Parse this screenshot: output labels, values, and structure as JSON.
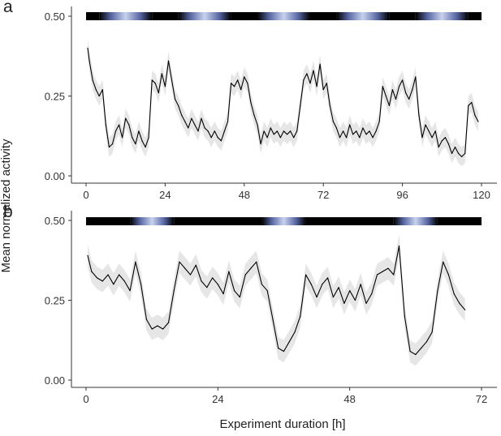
{
  "figure": {
    "ylabel": "Mean normalized activity",
    "xlabel": "Experiment duration [h]"
  },
  "colors": {
    "line": "#000000",
    "ribbon": "#e6e6e6",
    "dark": "#000000",
    "light": "#c8d2ee",
    "mid": "#5564a0"
  },
  "chart_data": [
    {
      "panel_label": "a",
      "type": "line",
      "xlabel": "Experiment duration [h]",
      "ylabel": "Mean normalized activity",
      "xlim": [
        0,
        120
      ],
      "ylim": [
        0,
        0.5
      ],
      "x_ticks": [
        0,
        24,
        48,
        72,
        96,
        120
      ],
      "y_ticks": [
        "0.00",
        "0.25",
        "0.50"
      ],
      "grid": false,
      "light_bar": [
        {
          "start": 0,
          "end": 4,
          "state": "dark"
        },
        {
          "start": 4,
          "end": 20,
          "state": "light"
        },
        {
          "start": 20,
          "end": 28,
          "state": "dark"
        },
        {
          "start": 28,
          "end": 44,
          "state": "light"
        },
        {
          "start": 44,
          "end": 52,
          "state": "dark"
        },
        {
          "start": 52,
          "end": 68,
          "state": "light"
        },
        {
          "start": 68,
          "end": 76,
          "state": "dark"
        },
        {
          "start": 76,
          "end": 92,
          "state": "light"
        },
        {
          "start": 92,
          "end": 100,
          "state": "dark"
        },
        {
          "start": 100,
          "end": 116,
          "state": "light"
        },
        {
          "start": 116,
          "end": 120,
          "state": "dark"
        }
      ],
      "series": [
        {
          "x": [
            0.5,
            1,
            2,
            3,
            4,
            5,
            6,
            7,
            8,
            9,
            10,
            11,
            12,
            13,
            14,
            15,
            16,
            17,
            18,
            19,
            20,
            21,
            22,
            23,
            24,
            25,
            26,
            27,
            28,
            29,
            30,
            31,
            32,
            33,
            34,
            35,
            36,
            37,
            38,
            39,
            40,
            41,
            42,
            43,
            44,
            45,
            46,
            47,
            48,
            49,
            50,
            51,
            52,
            53,
            54,
            55,
            56,
            57,
            58,
            59,
            60,
            61,
            62,
            63,
            64,
            65,
            66,
            67,
            68,
            69,
            70,
            71,
            72,
            73,
            74,
            75,
            76,
            77,
            78,
            79,
            80,
            81,
            82,
            83,
            84,
            85,
            86,
            87,
            88,
            89,
            90,
            91,
            92,
            93,
            94,
            95,
            96,
            97,
            98,
            99,
            100,
            101,
            102,
            103,
            104,
            105,
            106,
            107,
            108,
            109,
            110,
            111,
            112,
            113,
            114,
            115,
            116,
            117,
            118,
            119
          ],
          "y": [
            0.4,
            0.36,
            0.3,
            0.27,
            0.25,
            0.27,
            0.16,
            0.09,
            0.1,
            0.14,
            0.16,
            0.12,
            0.18,
            0.16,
            0.12,
            0.1,
            0.14,
            0.11,
            0.09,
            0.12,
            0.3,
            0.29,
            0.26,
            0.32,
            0.28,
            0.36,
            0.3,
            0.24,
            0.22,
            0.19,
            0.17,
            0.15,
            0.18,
            0.16,
            0.14,
            0.18,
            0.15,
            0.14,
            0.12,
            0.14,
            0.12,
            0.11,
            0.14,
            0.17,
            0.29,
            0.28,
            0.3,
            0.27,
            0.31,
            0.29,
            0.23,
            0.19,
            0.16,
            0.1,
            0.14,
            0.12,
            0.15,
            0.13,
            0.14,
            0.12,
            0.14,
            0.13,
            0.14,
            0.12,
            0.14,
            0.22,
            0.3,
            0.32,
            0.29,
            0.33,
            0.28,
            0.35,
            0.27,
            0.29,
            0.22,
            0.17,
            0.15,
            0.12,
            0.14,
            0.12,
            0.16,
            0.13,
            0.14,
            0.12,
            0.15,
            0.13,
            0.14,
            0.12,
            0.14,
            0.17,
            0.28,
            0.25,
            0.22,
            0.27,
            0.24,
            0.28,
            0.3,
            0.26,
            0.24,
            0.27,
            0.31,
            0.19,
            0.12,
            0.16,
            0.14,
            0.12,
            0.14,
            0.09,
            0.11,
            0.12,
            0.1,
            0.07,
            0.09,
            0.07,
            0.06,
            0.07,
            0.22,
            0.23,
            0.19,
            0.17
          ],
          "band_halfwidth": 0.03
        }
      ]
    },
    {
      "panel_label": "b",
      "type": "line",
      "xlabel": "Experiment duration [h]",
      "ylabel": "Mean normalized activity",
      "xlim": [
        0,
        72
      ],
      "ylim": [
        0,
        0.5
      ],
      "x_ticks": [
        0,
        24,
        48,
        72
      ],
      "y_ticks": [
        "0.00",
        "0.25",
        "0.50"
      ],
      "grid": false,
      "light_bar": [
        {
          "start": 0,
          "end": 8,
          "state": "dark"
        },
        {
          "start": 8,
          "end": 16,
          "state": "light"
        },
        {
          "start": 16,
          "end": 32,
          "state": "dark"
        },
        {
          "start": 32,
          "end": 40,
          "state": "light"
        },
        {
          "start": 40,
          "end": 56,
          "state": "dark"
        },
        {
          "start": 56,
          "end": 64,
          "state": "light"
        },
        {
          "start": 64,
          "end": 72,
          "state": "dark"
        }
      ],
      "series": [
        {
          "x": [
            0.3,
            1,
            2,
            3,
            4,
            5,
            6,
            7,
            8,
            9,
            10,
            11,
            12,
            13,
            14,
            15,
            16,
            17,
            18,
            19,
            20,
            21,
            22,
            23,
            24,
            25,
            26,
            27,
            28,
            29,
            30,
            31,
            32,
            33,
            34,
            35,
            36,
            37,
            38,
            39,
            40,
            41,
            42,
            43,
            44,
            45,
            46,
            47,
            48,
            49,
            50,
            51,
            52,
            53,
            54,
            55,
            56,
            57,
            58,
            59,
            60,
            61,
            62,
            63,
            64,
            65,
            66,
            67,
            68,
            69
          ],
          "y": [
            0.39,
            0.34,
            0.32,
            0.31,
            0.33,
            0.3,
            0.33,
            0.31,
            0.28,
            0.37,
            0.3,
            0.19,
            0.16,
            0.17,
            0.16,
            0.18,
            0.28,
            0.37,
            0.35,
            0.33,
            0.36,
            0.31,
            0.29,
            0.32,
            0.3,
            0.27,
            0.34,
            0.28,
            0.26,
            0.33,
            0.35,
            0.37,
            0.3,
            0.28,
            0.19,
            0.1,
            0.09,
            0.12,
            0.15,
            0.2,
            0.33,
            0.3,
            0.26,
            0.3,
            0.32,
            0.26,
            0.29,
            0.24,
            0.28,
            0.25,
            0.3,
            0.24,
            0.27,
            0.33,
            0.34,
            0.35,
            0.33,
            0.42,
            0.2,
            0.09,
            0.08,
            0.1,
            0.12,
            0.15,
            0.28,
            0.37,
            0.33,
            0.27,
            0.24,
            0.22
          ],
          "band_halfwidth": 0.035
        }
      ]
    }
  ]
}
